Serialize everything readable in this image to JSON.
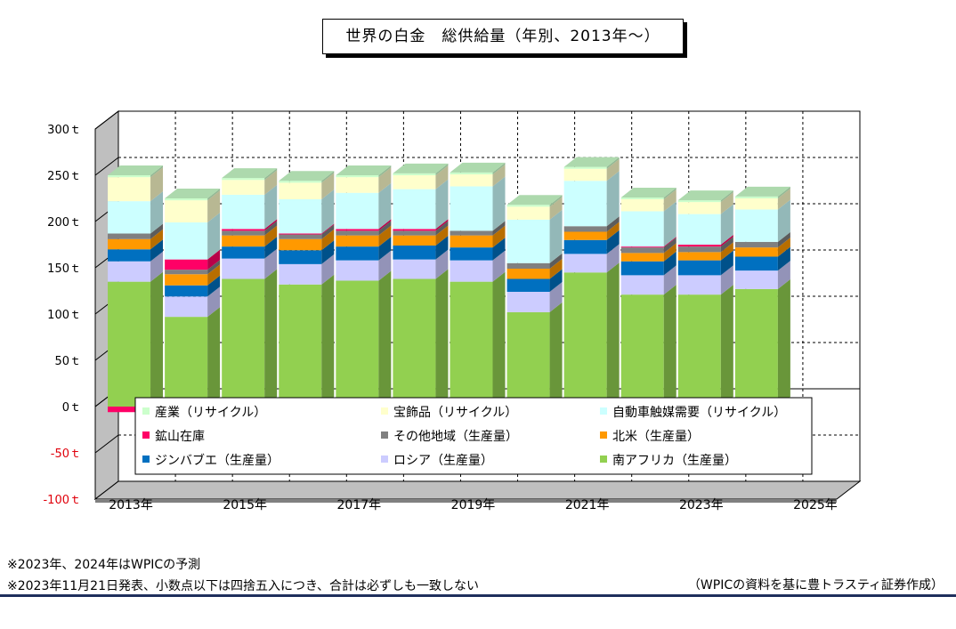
{
  "notes": [
    "※2023年、2024年はWPICの予測",
    "※2023年11月21日発表、小数点以下は四捨五入につき、合計は必ずしも一致しない"
  ],
  "source": "（WPICの資料を基に豊トラスティ証券作成）",
  "chart_data": {
    "type": "bar",
    "stacked": true,
    "three_d": true,
    "title": "世界の白金　総供給量（年別、2013年～）",
    "xlabel": "",
    "ylabel": "",
    "ylim": [
      -100,
      300
    ],
    "ytick_step": 50,
    "yticks": [
      "300ｔ",
      "250ｔ",
      "200ｔ",
      "150ｔ",
      "100ｔ",
      "50ｔ",
      "0ｔ",
      "-50ｔ",
      "-100ｔ"
    ],
    "ytick_values": [
      300,
      250,
      200,
      150,
      100,
      50,
      0,
      -50,
      -100
    ],
    "negative_tick_color": "#e0000b",
    "categories": [
      "2013年",
      "2014年",
      "2015年",
      "2016年",
      "2017年",
      "2018年",
      "2019年",
      "2020年",
      "2021年",
      "2022年",
      "2023年",
      "2024年",
      "2025年"
    ],
    "xtick_labels_shown": [
      "2013年",
      "2015年",
      "2017年",
      "2019年",
      "2021年",
      "2023年",
      "2025年"
    ],
    "grid": true,
    "legend_position": "bottom-inside",
    "series": [
      {
        "name": "南アフリカ（生産量）",
        "color": "#92d050",
        "values": [
          135,
          97,
          138,
          132,
          136,
          138,
          135,
          102,
          145,
          121,
          121,
          127,
          null
        ]
      },
      {
        "name": "ロシア（生産量）",
        "color": "#ccccff",
        "values": [
          22,
          22,
          22,
          22,
          22,
          21,
          23,
          22,
          20,
          21,
          21,
          20,
          null
        ]
      },
      {
        "name": "ジンバブエ（生産量）",
        "color": "#0070c0",
        "values": [
          13,
          12,
          13,
          15,
          15,
          15,
          14,
          14,
          15,
          15,
          16,
          15,
          null
        ]
      },
      {
        "name": "北米（生産量）",
        "color": "#ff9900",
        "values": [
          11,
          12,
          12,
          12,
          12,
          11,
          13,
          11,
          9,
          9,
          9,
          10,
          null
        ]
      },
      {
        "name": "その他地域（生産量）",
        "color": "#808080",
        "values": [
          6,
          5,
          5,
          5,
          5,
          5,
          5,
          6,
          6,
          6,
          6,
          6,
          null
        ]
      },
      {
        "name": "鉱山在庫",
        "color": "#ff0066",
        "values": [
          -6,
          11,
          2,
          1,
          2,
          2,
          0,
          -3,
          -2,
          1,
          2,
          0,
          null
        ]
      },
      {
        "name": "自動車触媒需要（リサイクル）",
        "color": "#ccffff",
        "values": [
          35,
          40,
          37,
          37,
          39,
          43,
          48,
          47,
          49,
          38,
          33,
          35,
          null
        ]
      },
      {
        "name": "宝飾品（リサイクル）",
        "color": "#ffffcc",
        "values": [
          26,
          24,
          16,
          18,
          17,
          15,
          13,
          14,
          13,
          13,
          13,
          12,
          null
        ]
      },
      {
        "name": "産業（リサイクル）",
        "color": "#ccffcc",
        "values": [
          2,
          2,
          2,
          2,
          2,
          2,
          2,
          2,
          2,
          2,
          2,
          2,
          null
        ]
      }
    ],
    "legend_order": [
      "産業（リサイクル）",
      "宝飾品（リサイクル）",
      "自動車触媒需要（リサイクル）",
      "鉱山在庫",
      "その他地域（生産量）",
      "北米（生産量）",
      "ジンバブエ（生産量）",
      "ロシア（生産量）",
      "南アフリカ（生産量）"
    ]
  }
}
